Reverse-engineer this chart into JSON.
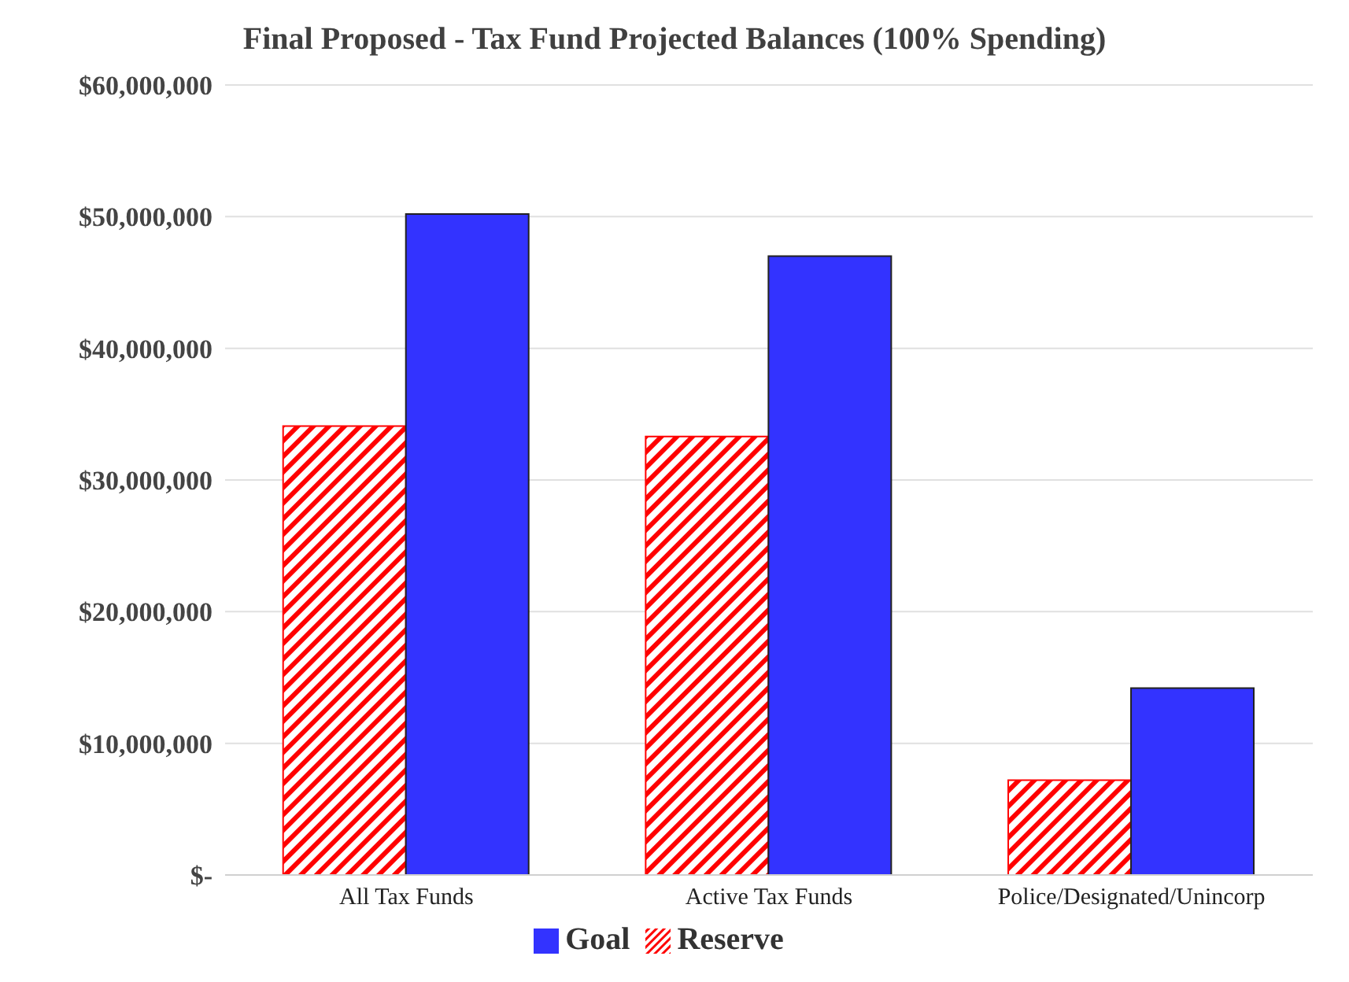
{
  "chart_data": {
    "type": "bar",
    "title": "Final Proposed - Tax Fund Projected Balances (100% Spending)",
    "categories": [
      "All Tax Funds",
      "Active Tax Funds",
      "Police/Designated/Unincorp"
    ],
    "series": [
      {
        "name": "Reserve",
        "color": "#ff0000",
        "values": [
          34100000,
          33300000,
          7200000
        ]
      },
      {
        "name": "Goal",
        "color": "#3333ff",
        "values": [
          50200000,
          47000000,
          14200000
        ]
      }
    ],
    "ylim": [
      0,
      60000000
    ],
    "yticks": [
      {
        "value": 0,
        "label": "$-"
      },
      {
        "value": 10000000,
        "label": "$10,000,000"
      },
      {
        "value": 20000000,
        "label": "$20,000,000"
      },
      {
        "value": 30000000,
        "label": "$30,000,000"
      },
      {
        "value": 40000000,
        "label": "$40,000,000"
      },
      {
        "value": 50000000,
        "label": "$50,000,000"
      },
      {
        "value": 60000000,
        "label": "$60,000,000"
      }
    ],
    "grid": "y",
    "legend": "bottom"
  }
}
